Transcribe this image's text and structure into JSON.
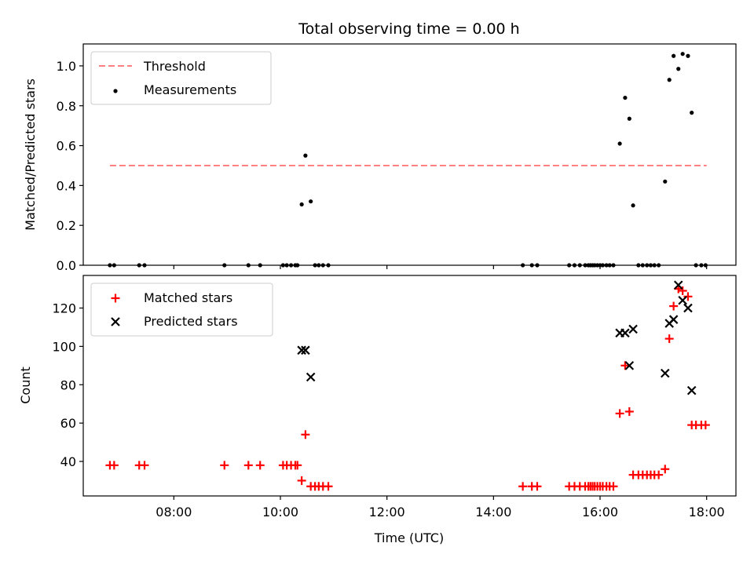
{
  "chart_data": {
    "title": "Total observing time = 0.00 h",
    "xlabel": "Time (UTC)",
    "x_tick_labels": [
      "08:00",
      "10:00",
      "12:00",
      "14:00",
      "16:00",
      "18:00"
    ],
    "x_ticks": [
      8,
      10,
      12,
      14,
      16,
      18
    ],
    "xlim": [
      6.3,
      18.55
    ],
    "panels": [
      {
        "type": "scatter",
        "ylabel": "Matched/Predicted stars",
        "ylim": [
          0,
          1.11
        ],
        "y_ticks": [
          0,
          0.2,
          0.4,
          0.6,
          0.8,
          1.0
        ],
        "y_tick_labels": [
          "0.0",
          "0.2",
          "0.4",
          "0.6",
          "0.8",
          "1.0"
        ],
        "legend_position": "top-left",
        "series": [
          {
            "name": "Threshold",
            "type": "line",
            "style": "dashed",
            "color": "#ff8080",
            "x": [
              6.8,
              18.0
            ],
            "y": [
              0.5,
              0.5
            ]
          },
          {
            "name": "Measurements",
            "type": "scatter",
            "marker": "dot",
            "color": "#000000",
            "x": [
              6.8,
              6.88,
              7.35,
              7.45,
              8.95,
              9.4,
              9.62,
              10.05,
              10.12,
              10.2,
              10.28,
              10.32,
              10.4,
              10.47,
              10.57,
              10.65,
              10.72,
              10.8,
              10.9,
              14.55,
              14.72,
              14.82,
              15.42,
              15.52,
              15.62,
              15.72,
              15.78,
              15.82,
              15.86,
              15.9,
              15.95,
              16.0,
              16.05,
              16.12,
              16.18,
              16.25,
              16.37,
              16.47,
              16.55,
              16.62,
              16.72,
              16.8,
              16.88,
              16.95,
              17.02,
              17.1,
              17.22,
              17.3,
              17.38,
              17.47,
              17.55,
              17.65,
              17.72,
              17.8,
              17.9,
              17.98
            ],
            "y": [
              0,
              0,
              0,
              0,
              0,
              0,
              0,
              0,
              0,
              0,
              0,
              0,
              0.305,
              0.55,
              0.32,
              0,
              0,
              0,
              0,
              0,
              0,
              0,
              0,
              0,
              0,
              0,
              0,
              0,
              0,
              0,
              0,
              0,
              0,
              0,
              0,
              0,
              0.61,
              0.84,
              0.735,
              0.3,
              0,
              0,
              0,
              0,
              0,
              0,
              0.42,
              0.93,
              1.05,
              0.985,
              1.06,
              1.05,
              0.765,
              0,
              0,
              0
            ]
          }
        ]
      },
      {
        "type": "scatter",
        "ylabel": "Count",
        "ylim": [
          22,
          137
        ],
        "y_ticks": [
          40,
          60,
          80,
          100,
          120
        ],
        "y_tick_labels": [
          "40",
          "60",
          "80",
          "100",
          "120"
        ],
        "legend_position": "top-left",
        "series": [
          {
            "name": "Matched stars",
            "type": "scatter",
            "marker": "plus",
            "color": "#ff0000",
            "x": [
              6.8,
              6.88,
              7.35,
              7.45,
              8.95,
              9.4,
              9.62,
              10.05,
              10.12,
              10.2,
              10.28,
              10.32,
              10.4,
              10.47,
              10.57,
              10.65,
              10.72,
              10.8,
              10.9,
              14.55,
              14.72,
              14.82,
              15.42,
              15.52,
              15.62,
              15.72,
              15.78,
              15.82,
              15.86,
              15.9,
              15.95,
              16.0,
              16.05,
              16.12,
              16.18,
              16.25,
              16.37,
              16.47,
              16.55,
              16.62,
              16.72,
              16.8,
              16.88,
              16.95,
              17.02,
              17.1,
              17.22,
              17.3,
              17.38,
              17.47,
              17.55,
              17.65,
              17.72,
              17.8,
              17.9,
              17.98
            ],
            "y": [
              38,
              38,
              38,
              38,
              38,
              38,
              38,
              38,
              38,
              38,
              38,
              38,
              30,
              54,
              27,
              27,
              27,
              27,
              27,
              27,
              27,
              27,
              27,
              27,
              27,
              27,
              27,
              27,
              27,
              27,
              27,
              27,
              27,
              27,
              27,
              27,
              65,
              90,
              66,
              33,
              33,
              33,
              33,
              33,
              33,
              33,
              36,
              104,
              121,
              130,
              129,
              126,
              59,
              59,
              59,
              59
            ]
          },
          {
            "name": "Predicted stars",
            "type": "scatter",
            "marker": "x",
            "color": "#000000",
            "x": [
              10.4,
              10.47,
              10.57,
              16.37,
              16.47,
              16.55,
              16.62,
              17.22,
              17.3,
              17.38,
              17.47,
              17.55,
              17.65,
              17.72
            ],
            "y": [
              98,
              98,
              84,
              107,
              107,
              90,
              109,
              86,
              112,
              114,
              132,
              124,
              120,
              77
            ]
          }
        ]
      }
    ]
  },
  "colors": {
    "threshold": "#ff8080",
    "matched": "#ff0000",
    "predicted": "#000000",
    "measurements": "#000000"
  }
}
